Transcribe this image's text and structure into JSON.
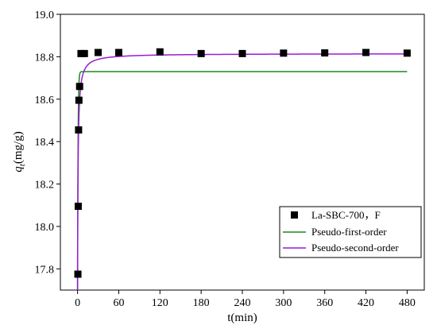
{
  "chart_data": {
    "type": "scatter",
    "xlabel": "t(min)",
    "ylabel": "q_t(mg/g)",
    "ylabel_main": "q",
    "ylabel_sub": "t",
    "ylabel_unit": "(mg/g)",
    "xlim": [
      -25,
      505
    ],
    "ylim": [
      17.7,
      19.0
    ],
    "xticks": [
      0,
      60,
      120,
      180,
      240,
      300,
      360,
      420,
      480
    ],
    "yticks": [
      17.8,
      18.0,
      18.2,
      18.4,
      18.6,
      18.8,
      19.0
    ],
    "y_tick_decimals": 1,
    "legend_position": "lower-right",
    "series": [
      {
        "name": "La-SBC-700，F",
        "kind": "points",
        "color": "#000000",
        "x": [
          0.5,
          1,
          1.5,
          2,
          3,
          5,
          10,
          30,
          60,
          120,
          180,
          240,
          300,
          360,
          420,
          480
        ],
        "y": [
          17.775,
          18.095,
          18.455,
          18.595,
          18.66,
          18.815,
          18.815,
          18.82,
          18.82,
          18.823,
          18.815,
          18.815,
          18.817,
          18.818,
          18.82,
          18.817
        ]
      },
      {
        "name": "Pseudo-first-order",
        "kind": "line",
        "color": "#1a8a1a",
        "qe": 18.73,
        "k": 1.4,
        "y0": 17.7
      },
      {
        "name": "Pseudo-second-order",
        "kind": "line",
        "color": "#9a1ad8",
        "qe": 18.815,
        "k": 1.2,
        "y0": 17.7
      }
    ]
  }
}
